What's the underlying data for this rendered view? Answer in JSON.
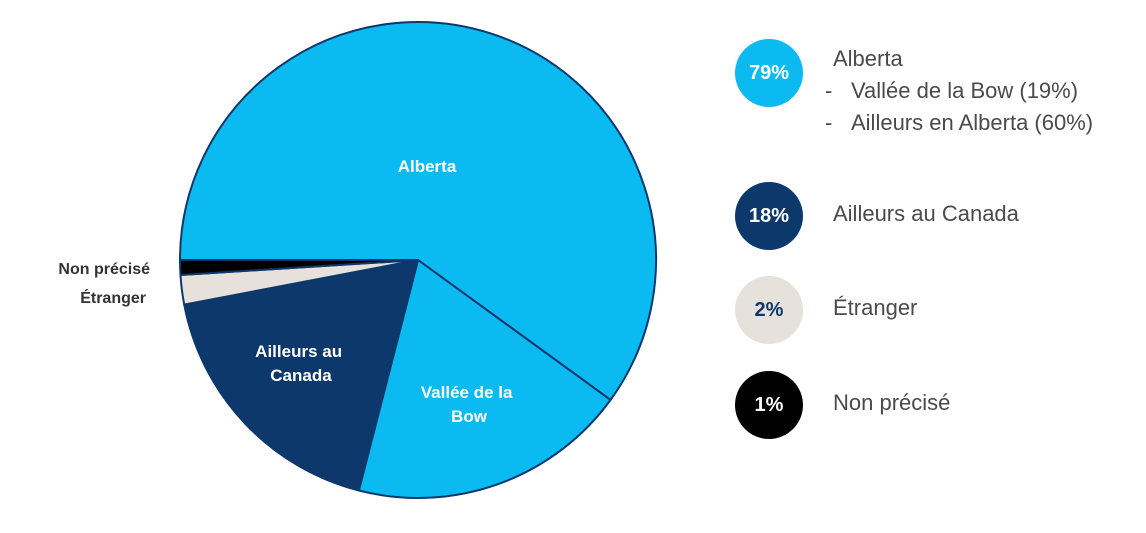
{
  "chart_data": {
    "type": "pie",
    "slices": [
      {
        "label": "Alberta",
        "value": 60,
        "color": "#0bbaf0"
      },
      {
        "label": "Vallée de la Bow",
        "value": 19,
        "color": "#0bbaf0"
      },
      {
        "label": "Ailleurs au Canada",
        "value": 18,
        "color": "#0d386b"
      },
      {
        "label": "Étranger",
        "value": 2,
        "color": "#e6e1da"
      },
      {
        "label": "Non précisé",
        "value": 1,
        "color": "#000000"
      }
    ],
    "slice_labels": {
      "alberta": "Alberta",
      "bow_line1": "Vallée de la",
      "bow_line2": "Bow",
      "canada_line1": "Ailleurs au",
      "canada_line2": "Canada",
      "non_precise": "Non précisé",
      "etranger": "Étranger"
    }
  },
  "legend": {
    "items": [
      {
        "badge": "79%",
        "label": "Alberta",
        "badge_color": "#0bbaf0",
        "text_color": "#ffffff",
        "sub": [
          "Vallée de la Bow (19%)",
          "Ailleurs en Alberta (60%)"
        ]
      },
      {
        "badge": "18%",
        "label": "Ailleurs au Canada",
        "badge_color": "#0d386b",
        "text_color": "#ffffff"
      },
      {
        "badge": "2%",
        "label": "Étranger",
        "badge_color": "#e6e1da",
        "text_color": "#0d386b"
      },
      {
        "badge": "1%",
        "label": "Non précisé",
        "badge_color": "#000000",
        "text_color": "#ffffff"
      }
    ]
  }
}
